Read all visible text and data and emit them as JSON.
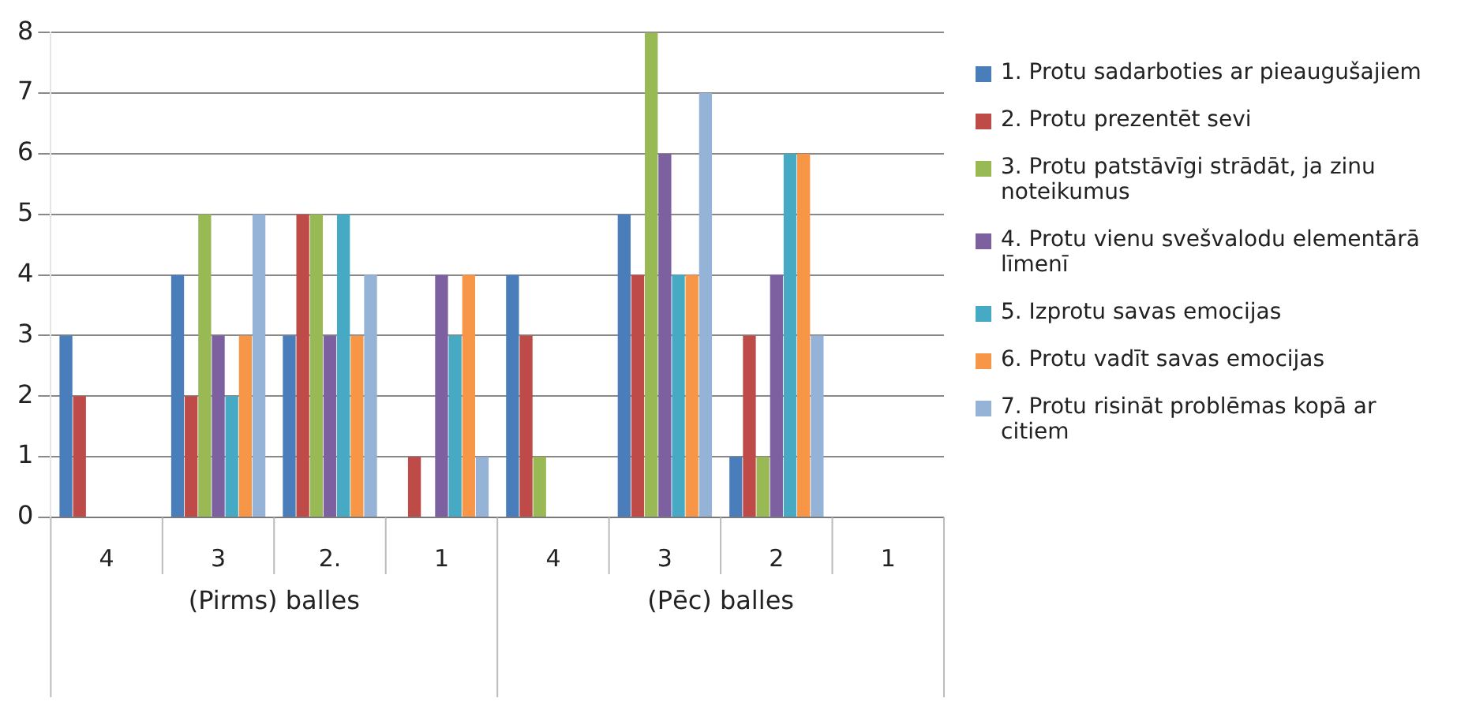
{
  "chart_data": {
    "type": "bar",
    "categories": [
      "4",
      "3",
      "2.",
      "1",
      "4",
      "3",
      "2",
      "1"
    ],
    "series": [
      {
        "name": "1. Protu sadarboties ar pieaugušajiem",
        "color": "#4a7ebb",
        "values": [
          3,
          4,
          3,
          0,
          4,
          5,
          1,
          0
        ]
      },
      {
        "name": "2. Protu prezentēt sevi",
        "color": "#be4b48",
        "values": [
          2,
          2,
          5,
          1,
          3,
          4,
          3,
          0
        ]
      },
      {
        "name": "3. Protu patstāvīgi strādāt, ja zinu noteikumus",
        "color": "#98b954",
        "values": [
          0,
          5,
          5,
          0,
          1,
          8,
          1,
          0
        ]
      },
      {
        "name": "4. Protu vienu svešvalodu elementārā līmenī",
        "color": "#7d60a0",
        "values": [
          0,
          3,
          3,
          4,
          0,
          6,
          4,
          0
        ]
      },
      {
        "name": "5. Izprotu savas emocijas",
        "color": "#46aac5",
        "values": [
          0,
          2,
          5,
          3,
          0,
          4,
          6,
          0
        ]
      },
      {
        "name": "6. Protu vadīt savas emocijas",
        "color": "#f79646",
        "values": [
          0,
          3,
          3,
          4,
          0,
          4,
          6,
          0
        ]
      },
      {
        "name": "7. Protu risināt problēmas kopā ar citiem",
        "color": "#95b3d7",
        "values": [
          0,
          5,
          4,
          1,
          0,
          7,
          3,
          0
        ]
      }
    ],
    "annotations": [
      "(Pirms) balles",
      "(Pēc) balles"
    ],
    "ylim": [
      0,
      8
    ],
    "yticks": [
      0,
      1,
      2,
      3,
      4,
      5,
      6,
      7,
      8
    ],
    "grid": "y",
    "legend": "right"
  }
}
